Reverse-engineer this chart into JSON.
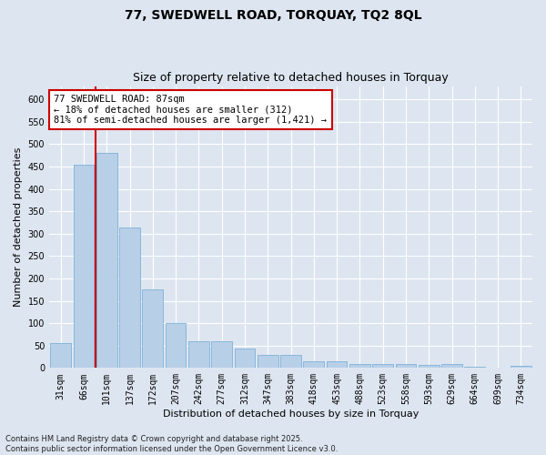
{
  "title": "77, SWEDWELL ROAD, TORQUAY, TQ2 8QL",
  "subtitle": "Size of property relative to detached houses in Torquay",
  "xlabel": "Distribution of detached houses by size in Torquay",
  "ylabel": "Number of detached properties",
  "categories": [
    "31sqm",
    "66sqm",
    "101sqm",
    "137sqm",
    "172sqm",
    "207sqm",
    "242sqm",
    "277sqm",
    "312sqm",
    "347sqm",
    "383sqm",
    "418sqm",
    "453sqm",
    "488sqm",
    "523sqm",
    "558sqm",
    "593sqm",
    "629sqm",
    "664sqm",
    "699sqm",
    "734sqm"
  ],
  "values": [
    55,
    455,
    480,
    313,
    175,
    100,
    60,
    60,
    43,
    30,
    30,
    15,
    15,
    9,
    9,
    9,
    6,
    9,
    3,
    1,
    4
  ],
  "bar_color": "#b8cfe8",
  "bar_edge_color": "#6fa8d4",
  "ylim": [
    0,
    630
  ],
  "yticks": [
    0,
    50,
    100,
    150,
    200,
    250,
    300,
    350,
    400,
    450,
    500,
    550,
    600
  ],
  "vline_x": 1.5,
  "vline_color": "#cc0000",
  "annotation_text": "77 SWEDWELL ROAD: 87sqm\n← 18% of detached houses are smaller (312)\n81% of semi-detached houses are larger (1,421) →",
  "annotation_box_color": "#ffffff",
  "annotation_box_edge": "#cc0000",
  "footer": "Contains HM Land Registry data © Crown copyright and database right 2025.\nContains public sector information licensed under the Open Government Licence v3.0.",
  "background_color": "#dde6f0",
  "plot_background": "#dde6f0",
  "grid_color": "#ffffff",
  "title_fontsize": 10,
  "subtitle_fontsize": 9,
  "label_fontsize": 8,
  "tick_fontsize": 7,
  "annotation_fontsize": 7.5,
  "footer_fontsize": 6
}
